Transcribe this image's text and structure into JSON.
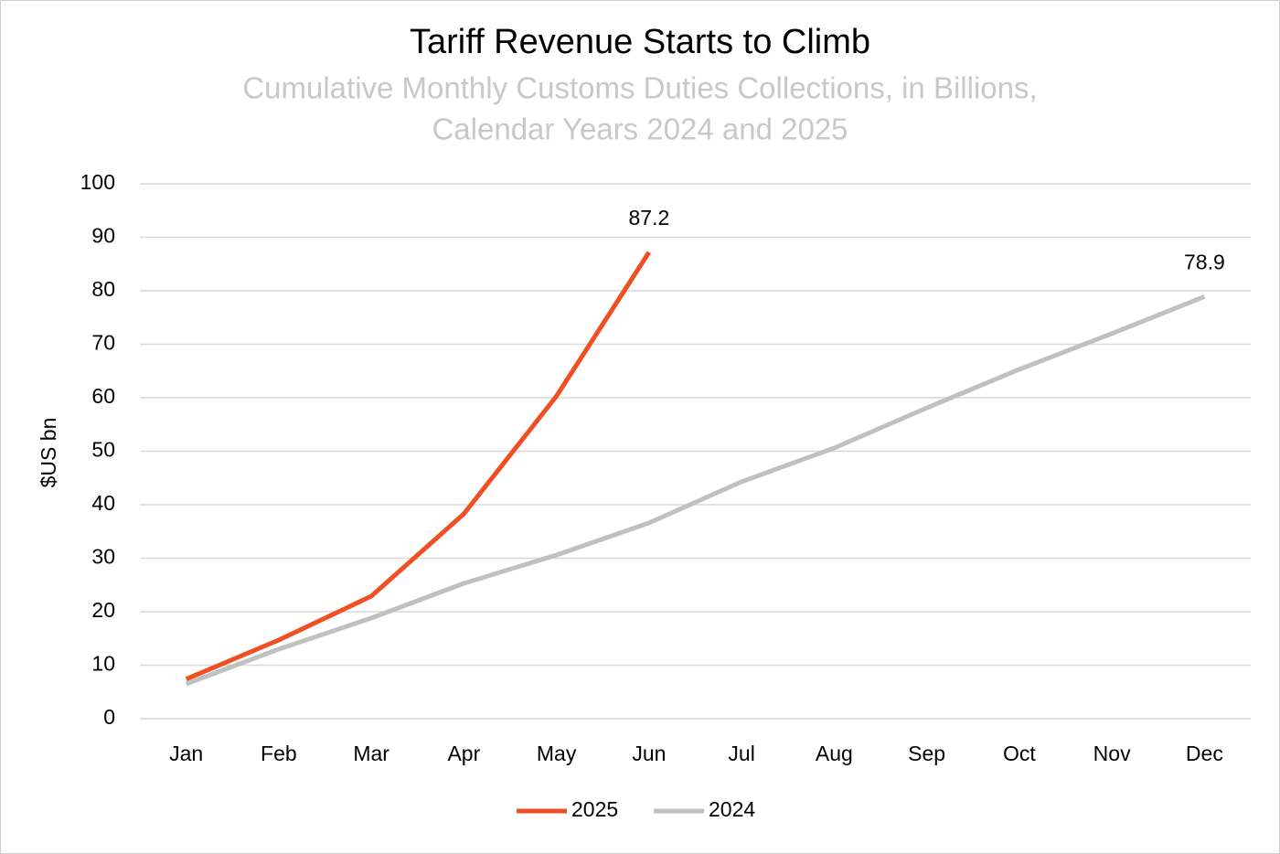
{
  "chart_data": {
    "type": "line",
    "title": "Tariff Revenue Starts to Climb",
    "subtitle": [
      "Cumulative Monthly Customs Duties Collections, in Billions,",
      "Calendar Years 2024 and 2025"
    ],
    "y_label": "$US bn",
    "categories": [
      "Jan",
      "Feb",
      "Mar",
      "Apr",
      "May",
      "Jun",
      "Jul",
      "Aug",
      "Sep",
      "Oct",
      "Nov",
      "Dec"
    ],
    "series": [
      {
        "name": "2025",
        "color": "#f04e23",
        "values": [
          7.4,
          14.7,
          22.9,
          38.3,
          60.3,
          87.2,
          null,
          null,
          null,
          null,
          null,
          null
        ]
      },
      {
        "name": "2024",
        "color": "#c0c0c0",
        "values": [
          6.5,
          13.0,
          18.8,
          25.3,
          30.6,
          36.6,
          44.3,
          50.6,
          58.1,
          65.3,
          72.0,
          78.9
        ]
      }
    ],
    "ylim": [
      0,
      100
    ],
    "yticks": [
      0,
      10,
      20,
      30,
      40,
      50,
      60,
      70,
      80,
      90,
      100
    ],
    "grid": true,
    "data_labels": "last",
    "legend": "bottom"
  }
}
